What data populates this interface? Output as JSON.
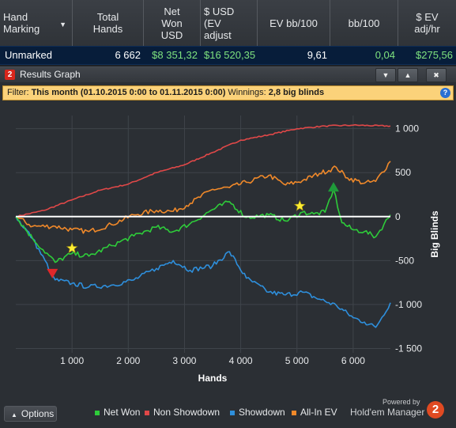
{
  "stats_table": {
    "sort_icon": "caret-down-icon",
    "columns": [
      {
        "key": "marking",
        "label": "Hand\nMarking"
      },
      {
        "key": "total_hands",
        "label": "Total\nHands"
      },
      {
        "key": "net_won_usd",
        "label": "Net\nWon\nUSD"
      },
      {
        "key": "usd_ev_adjust",
        "label": "$ USD\n(EV\nadjust"
      },
      {
        "key": "ev_bb100",
        "label": "EV bb/100"
      },
      {
        "key": "bb100",
        "label": "bb/100"
      },
      {
        "key": "ev_adj_hr",
        "label": "$ EV\nadj/hr"
      }
    ],
    "row": {
      "marking": "Unmarked",
      "total_hands": "6 662",
      "net_won_usd": "$8 351,32",
      "usd_ev_adjust": "$16 520,35",
      "ev_bb100": "9,61",
      "bb100": "0,04",
      "ev_adj_hr": "$275,56"
    }
  },
  "graph_window": {
    "badge": "2",
    "title": "Results Graph",
    "buttons": [
      {
        "name": "collapse-icon",
        "glyph": "▼"
      },
      {
        "name": "expand-icon",
        "glyph": "▲"
      },
      {
        "name": "close-icon",
        "glyph": "✖"
      }
    ],
    "filter": {
      "label": "Filter:",
      "value": "This month (01.10.2015 0:00 to 01.11.2015 0:00)",
      "winnings_label": "Winnings:",
      "winnings_value": "2,8 big blinds",
      "help_icon": "?"
    },
    "options_label": "Options",
    "options_icon": "caret-up-icon",
    "brand": {
      "powered": "Powered by",
      "name": "Hold'em Manager",
      "logo": "2"
    }
  },
  "colors": {
    "net_won": "#2ecc3a",
    "non_showdown": "#e04848",
    "showdown": "#2e8fdc",
    "all_in_ev": "#f0892a",
    "zero_line": "#ffffff",
    "filter_bg": "#fbd27a",
    "table_row_bg": "#071d3a",
    "positive_value": "#7fe37f"
  },
  "chart_data": {
    "type": "line",
    "xlabel": "Hands",
    "ylabel": "Big Blinds",
    "xlim": [
      0,
      6662
    ],
    "ylim": [
      -1500,
      1000
    ],
    "x_ticks": [
      {
        "value": 1000,
        "label": "1 000"
      },
      {
        "value": 2000,
        "label": "2 000"
      },
      {
        "value": 3000,
        "label": "3 000"
      },
      {
        "value": 4000,
        "label": "4 000"
      },
      {
        "value": 5000,
        "label": "5 000"
      },
      {
        "value": 6000,
        "label": "6 000"
      }
    ],
    "y_ticks": [
      {
        "value": 1000,
        "label": "1 000"
      },
      {
        "value": 500,
        "label": "500"
      },
      {
        "value": 0,
        "label": "0"
      },
      {
        "value": -500,
        "label": "-500"
      },
      {
        "value": -1000,
        "label": "-1 000"
      },
      {
        "value": -1500,
        "label": "-1 500"
      }
    ],
    "grid": true,
    "legend_position": "bottom",
    "series": [
      {
        "name": "Net Won",
        "color_key": "net_won",
        "x": [
          0,
          300,
          700,
          1000,
          1300,
          1700,
          2100,
          2500,
          2800,
          3100,
          3500,
          3800,
          4100,
          4500,
          4800,
          5100,
          5300,
          5500,
          5650,
          5800,
          6000,
          6200,
          6400,
          6662
        ],
        "y": [
          0,
          -250,
          -520,
          -420,
          -450,
          -330,
          -220,
          -120,
          -170,
          -80,
          80,
          170,
          -10,
          20,
          -50,
          50,
          30,
          50,
          310,
          -70,
          -150,
          -170,
          -230,
          20
        ]
      },
      {
        "name": "Non Showdown",
        "color_key": "non_showdown",
        "x": [
          0,
          500,
          1000,
          1500,
          2000,
          2500,
          3000,
          3500,
          4000,
          4500,
          5000,
          5500,
          6000,
          6662
        ],
        "y": [
          0,
          70,
          190,
          300,
          370,
          500,
          590,
          730,
          870,
          930,
          1000,
          1030,
          1040,
          1030
        ]
      },
      {
        "name": "Showdown",
        "color_key": "showdown",
        "x": [
          0,
          300,
          700,
          1000,
          1300,
          1700,
          2100,
          2500,
          2800,
          3100,
          3500,
          3800,
          4100,
          4500,
          4800,
          5100,
          5400,
          5700,
          6000,
          6200,
          6400,
          6662
        ],
        "y": [
          0,
          -250,
          -720,
          -760,
          -800,
          -780,
          -720,
          -590,
          -500,
          -610,
          -560,
          -400,
          -700,
          -860,
          -890,
          -860,
          -940,
          -1010,
          -1150,
          -1200,
          -1260,
          -980
        ]
      },
      {
        "name": "All-In EV",
        "color_key": "all_in_ev",
        "x": [
          0,
          300,
          700,
          1000,
          1300,
          1700,
          2100,
          2500,
          2800,
          3100,
          3500,
          3800,
          4100,
          4500,
          4800,
          5100,
          5400,
          5700,
          5900,
          6200,
          6400,
          6662
        ],
        "y": [
          0,
          -110,
          -110,
          -150,
          -170,
          -90,
          20,
          70,
          60,
          150,
          310,
          330,
          390,
          470,
          360,
          410,
          490,
          560,
          440,
          380,
          400,
          630
        ]
      }
    ],
    "markers": [
      {
        "kind": "star",
        "color": "#ffee33",
        "x": 1000,
        "y": -360
      },
      {
        "kind": "star",
        "color": "#ffee33",
        "x": 5050,
        "y": 120
      },
      {
        "kind": "triangle-down",
        "color": "#e0282a",
        "x": 650,
        "y": -640
      },
      {
        "kind": "triangle-up",
        "color": "#1f9a3a",
        "x": 5650,
        "y": 330
      }
    ]
  }
}
